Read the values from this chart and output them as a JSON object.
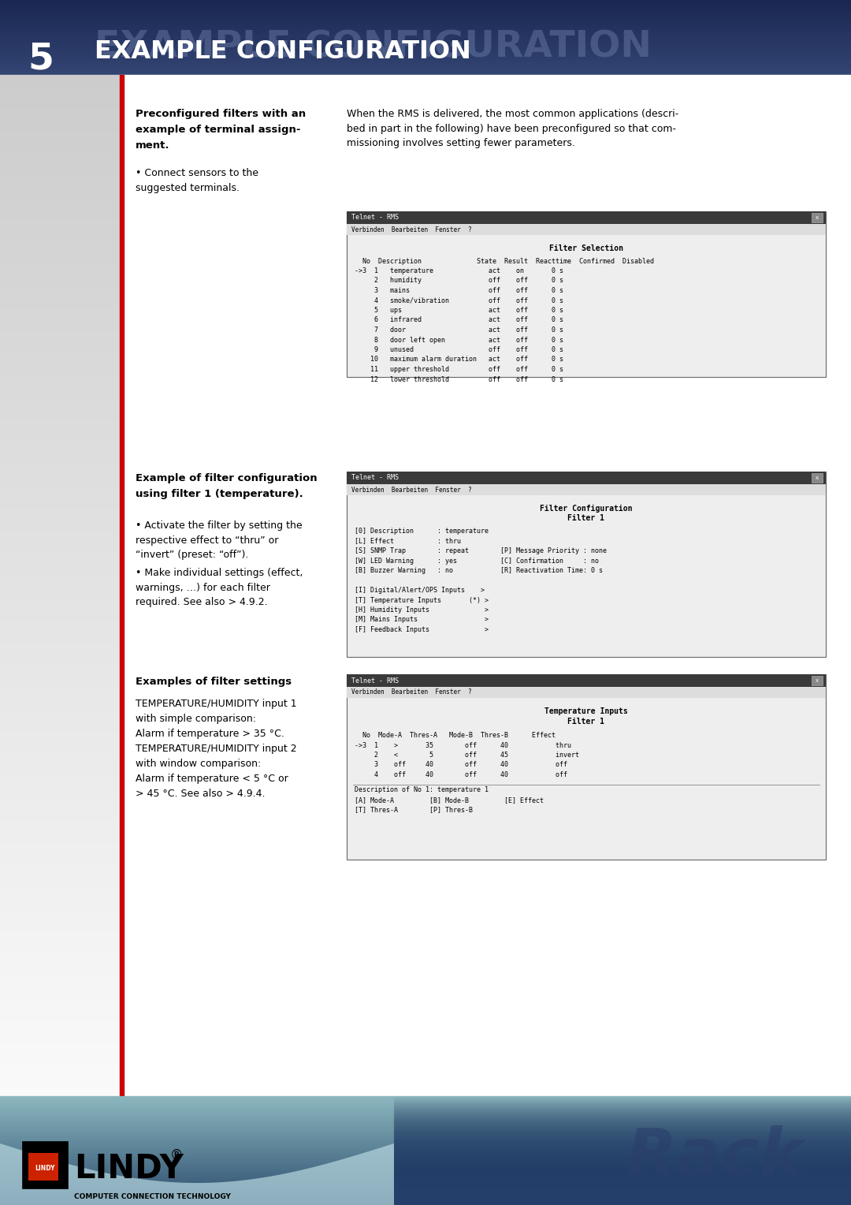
{
  "page_width": 10.8,
  "page_height": 15.28,
  "header_number": "5",
  "header_title": "EXAMPLE CONFIGURATION",
  "header_shadow_title": "EXAMPLE CONFIGURATION",
  "left_bar_color": "#cc0000",
  "section1_bold_line1": "Preconfigured filters with an",
  "section1_bold_line2": "example of terminal assign-",
  "section1_bold_line3": "ment.",
  "section1_bullet": "• Connect sensors to the\nsuggested terminals.",
  "section1_body": "When the RMS is delivered, the most common applications (descri-\nbed in part in the following) have been preconfigured so that com-\nmissioning involves setting fewer parameters.",
  "screen1_rows": [
    "->3  1   temperature              act    on       0 s",
    "     2   humidity                 off    off      0 s",
    "     3   mains                    off    off      0 s",
    "     4   smoke/vibration          off    off      0 s",
    "     5   ups                      act    off      0 s",
    "     6   infrared                 act    off      0 s",
    "     7   door                     act    off      0 s",
    "     8   door left open           act    off      0 s",
    "     9   unused                   off    off      0 s",
    "    10   maximum alarm duration   act    off      0 s",
    "    11   upper threshold          off    off      0 s",
    "    12   lower threshold          off    off      0 s"
  ],
  "section2_bold_line1": "Example of filter configuration",
  "section2_bold_line2": "using filter 1 (temperature).",
  "section2_bullet1": "• Activate the filter by setting the\nrespective effect to “thru” or\n“invert” (preset: “off”).",
  "section2_bullet2": "• Make individual settings (effect,\nwarnings, …) for each filter\nrequired. See also > 4.9.2.",
  "screen2_lines": [
    "[0] Description      : temperature",
    "[L] Effect           : thru",
    "[S] SNMP Trap        : repeat        [P] Message Priority : none",
    "[W] LED Warning      : yes           [C] Confirmation     : no",
    "[B] Buzzer Warning   : no            [R] Reactivation Time: 0 s",
    "",
    "[I] Digital/Alert/OPS Inputs    >",
    "[T] Temperature Inputs       (*) >",
    "[H] Humidity Inputs              >",
    "[M] Mains Inputs                 >",
    "[F] Feedback Inputs              >"
  ],
  "section3_bold": "Examples of filter settings",
  "section3_body": "TEMPERATURE/HUMIDITY input 1\nwith simple comparison:\nAlarm if temperature > 35 °C.\nTEMPERATURE/HUMIDITY input 2\nwith window comparison:\nAlarm if temperature < 5 °C or\n> 45 °C. See also > 4.9.4.",
  "screen3_rows": [
    "->3  1    >       35        off      40            thru",
    "     2    <        5        off      45            invert",
    "     3    off     40        off      40            off",
    "     4    off     40        off      40            off"
  ],
  "screen3_footer": "Description of No 1: temperature 1",
  "screen3_footer2a": "[A] Mode-A         [B] Mode-B         [E] Effect",
  "screen3_footer2b": "[T] Thres-A        [P] Thres-B"
}
